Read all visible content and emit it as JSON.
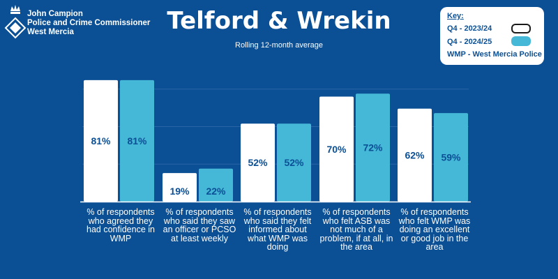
{
  "header": {
    "logo_line1": "John Campion",
    "logo_line2": "Police and Crime Commissioner",
    "logo_line3": "West Mercia",
    "title": "Telford & Wrekin",
    "subtitle": "Rolling 12-month average"
  },
  "key": {
    "title": "Key:",
    "series1": "Q4 - 2023/24",
    "series2": "Q4 - 2024/25",
    "note": "WMP - West Mercia Police"
  },
  "colors": {
    "background": "#0b4f95",
    "series1": "#ffffff",
    "series2": "#45b8d8",
    "value_text": "#0b4f95",
    "grid": "#2a66a6"
  },
  "chart_data": {
    "type": "bar",
    "categories": [
      "% of respondents who agreed they had confidence in WMP",
      "% of respondents who said they saw an officer or PCSO at least weekly",
      "% of respondents who said they felt  informed about what WMP was doing",
      "% of respondents who felt ASB was not much of a problem, if at all, in the area",
      "% of respondents who felt WMP was doing an excellent or good job in the area"
    ],
    "series": [
      {
        "name": "Q4 - 2023/24",
        "values": [
          81,
          19,
          52,
          70,
          62
        ],
        "labels": [
          "81%",
          "19%",
          "52%",
          "70%",
          "62%"
        ]
      },
      {
        "name": "Q4 - 2024/25",
        "values": [
          81,
          22,
          52,
          72,
          59
        ],
        "labels": [
          "81%",
          "22%",
          "52%",
          "72%",
          "59%"
        ]
      }
    ],
    "ylim": [
      0,
      100
    ],
    "grid": true,
    "legend": "top-right"
  }
}
